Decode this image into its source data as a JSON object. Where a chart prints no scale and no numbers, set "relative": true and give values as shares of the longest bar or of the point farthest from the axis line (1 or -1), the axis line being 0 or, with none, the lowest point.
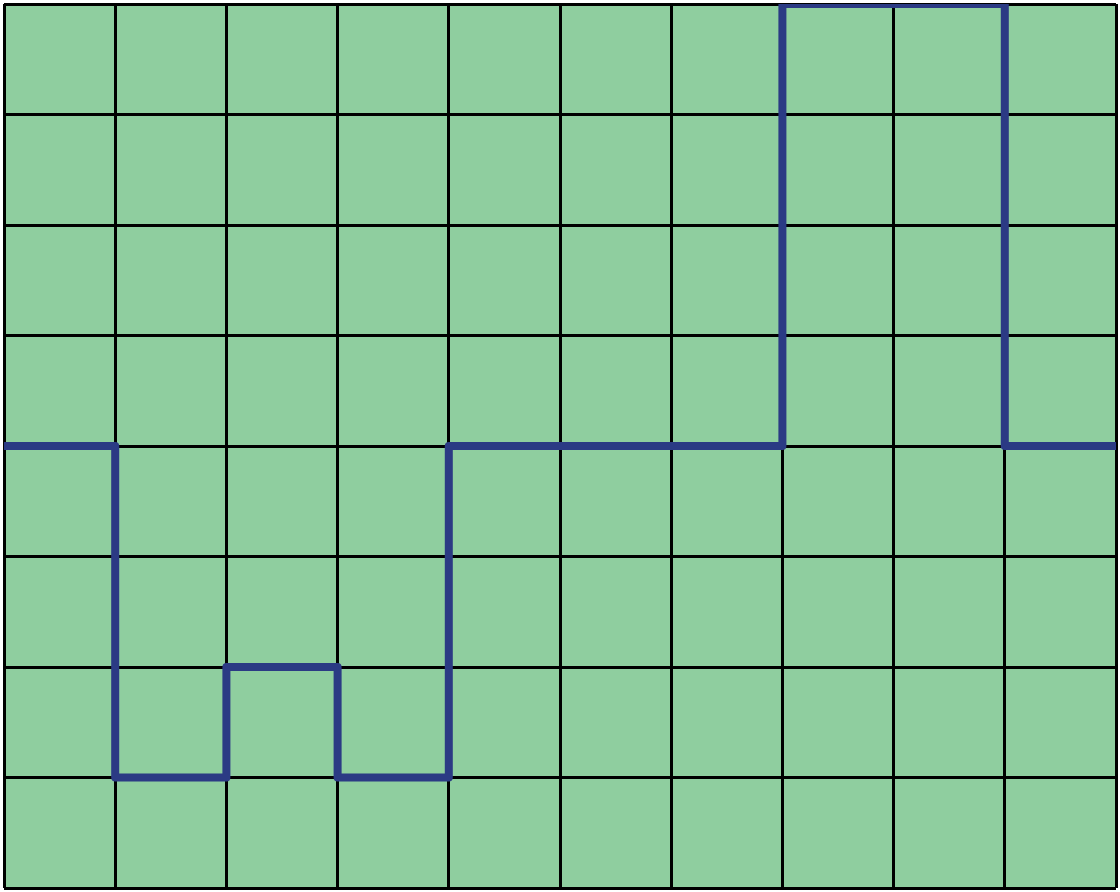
{
  "chart_data": {
    "type": "step",
    "relative": true,
    "grid": true,
    "categories": [
      null,
      null,
      null,
      null,
      null,
      null,
      null,
      null,
      null,
      null,
      null
    ],
    "series": [
      {
        "color": "#2b3a84",
        "values": [
          0,
          -0.75,
          -0.5,
          -0.75,
          0,
          0,
          0,
          1,
          1,
          0,
          0
        ]
      }
    ]
  }
}
